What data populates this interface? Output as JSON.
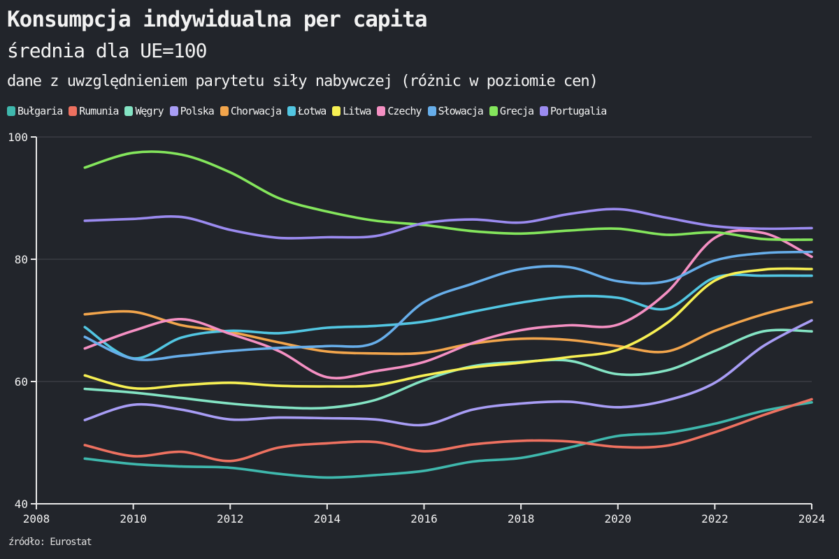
{
  "header": {
    "title": "Konsumpcja indywidualna per capita",
    "subtitle": "średnia dla UE=100",
    "note": "dane z uwzględnieniem parytetu siły nabywczej (różnic w poziomie cen)"
  },
  "footer": {
    "source": "źródło: Eurostat"
  },
  "colors": {
    "background": "#22252b",
    "text": "#f2f2f2",
    "axis": "#e9e9e9",
    "grid": "#45484f"
  },
  "chart_data": {
    "type": "line",
    "title": "Konsumpcja indywidualna per capita",
    "xlabel": "",
    "ylabel": "",
    "x": [
      2009,
      2010,
      2011,
      2012,
      2013,
      2014,
      2015,
      2016,
      2017,
      2018,
      2019,
      2020,
      2021,
      2022,
      2023,
      2024
    ],
    "xlim": [
      2008,
      2024
    ],
    "ylim": [
      40,
      100
    ],
    "xticks": [
      2008,
      2010,
      2012,
      2014,
      2016,
      2018,
      2020,
      2022,
      2024
    ],
    "yticks": [
      40,
      60,
      80,
      100
    ],
    "grid": "horizontal",
    "legend_position": "top",
    "series": [
      {
        "name": "Bułgaria",
        "color": "#3fb8ad",
        "values": [
          47.4,
          46.5,
          46.1,
          45.9,
          44.9,
          44.3,
          44.7,
          45.4,
          46.9,
          47.5,
          49.2,
          51.1,
          51.6,
          53.1,
          55.2,
          56.6
        ]
      },
      {
        "name": "Rumunia",
        "color": "#ee7160",
        "values": [
          49.6,
          47.8,
          48.5,
          47.0,
          49.2,
          49.9,
          50.1,
          48.6,
          49.7,
          50.3,
          50.2,
          49.3,
          49.5,
          51.7,
          54.5,
          57.1
        ]
      },
      {
        "name": "Węgry",
        "color": "#84e4c4",
        "values": [
          58.8,
          58.2,
          57.3,
          56.4,
          55.8,
          55.7,
          57.0,
          60.2,
          62.5,
          63.2,
          63.4,
          61.2,
          61.8,
          65.0,
          68.2,
          68.2
        ]
      },
      {
        "name": "Polska",
        "color": "#a89df5",
        "values": [
          53.7,
          56.2,
          55.4,
          53.8,
          54.1,
          54.0,
          53.8,
          52.9,
          55.4,
          56.4,
          56.7,
          55.8,
          56.9,
          59.8,
          65.8,
          70.0
        ]
      },
      {
        "name": "Chorwacja",
        "color": "#f2a54c",
        "values": [
          71.0,
          71.4,
          69.2,
          68.1,
          66.4,
          64.9,
          64.6,
          64.7,
          66.2,
          67.0,
          66.8,
          65.8,
          64.9,
          68.3,
          71.0,
          73.0
        ]
      },
      {
        "name": "Łotwa",
        "color": "#52c6e2",
        "values": [
          68.9,
          63.8,
          67.2,
          68.3,
          67.9,
          68.8,
          69.1,
          69.8,
          71.4,
          72.9,
          73.9,
          73.7,
          71.9,
          77.0,
          77.3,
          77.3
        ]
      },
      {
        "name": "Litwa",
        "color": "#f7f053",
        "values": [
          61.0,
          58.9,
          59.4,
          59.8,
          59.3,
          59.2,
          59.4,
          61.0,
          62.3,
          63.1,
          64.0,
          65.2,
          69.5,
          76.5,
          78.3,
          78.4
        ]
      },
      {
        "name": "Czechy",
        "color": "#f590c3",
        "values": [
          65.4,
          68.3,
          70.2,
          67.8,
          65.0,
          60.7,
          61.7,
          63.2,
          66.3,
          68.4,
          69.2,
          69.3,
          74.5,
          83.5,
          84.3,
          80.4
        ]
      },
      {
        "name": "Słowacja",
        "color": "#67aeea",
        "values": [
          67.3,
          63.7,
          64.2,
          65.0,
          65.5,
          65.8,
          66.4,
          73.0,
          76.0,
          78.4,
          78.7,
          76.4,
          76.4,
          79.8,
          81.0,
          81.2
        ]
      },
      {
        "name": "Grecja",
        "color": "#84e65c",
        "values": [
          95.0,
          97.4,
          97.1,
          94.2,
          90.0,
          87.8,
          86.3,
          85.6,
          84.6,
          84.2,
          84.7,
          85.0,
          84.0,
          84.4,
          83.3,
          83.2
        ]
      },
      {
        "name": "Portugalia",
        "color": "#9b8bf0",
        "values": [
          86.3,
          86.6,
          86.9,
          84.8,
          83.5,
          83.6,
          83.8,
          85.9,
          86.5,
          86.0,
          87.4,
          88.2,
          86.8,
          85.4,
          85.0,
          85.1
        ]
      }
    ]
  }
}
